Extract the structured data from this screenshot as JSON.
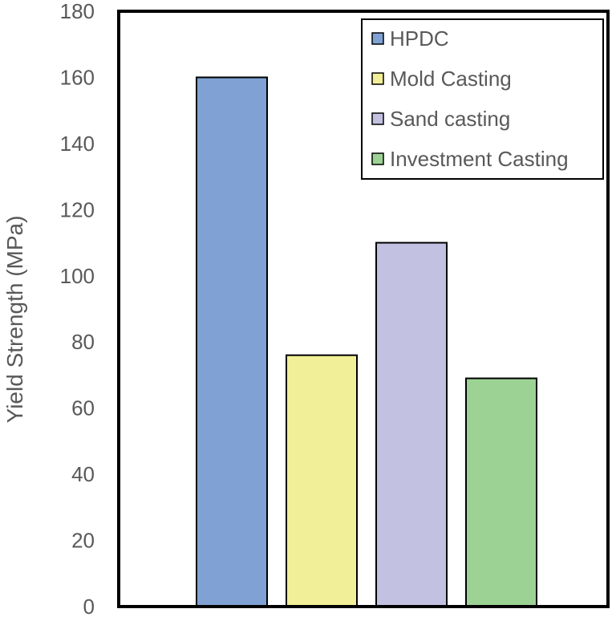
{
  "chart_data": {
    "type": "bar",
    "title": "",
    "xlabel": "",
    "ylabel": "Yield Strength (MPa)",
    "ylim": [
      0,
      180
    ],
    "yticks": [
      0,
      20,
      40,
      60,
      80,
      100,
      120,
      140,
      160,
      180
    ],
    "grid": false,
    "legend_position": "top-right",
    "series": [
      {
        "name": "HPDC",
        "value": 160,
        "color": "#7FA1D4"
      },
      {
        "name": "Mold Casting",
        "value": 76,
        "color": "#F1EF98"
      },
      {
        "name": "Sand casting",
        "value": 110,
        "color": "#C3C1E2"
      },
      {
        "name": "Investment Casting",
        "value": 69,
        "color": "#9CD394"
      }
    ]
  }
}
